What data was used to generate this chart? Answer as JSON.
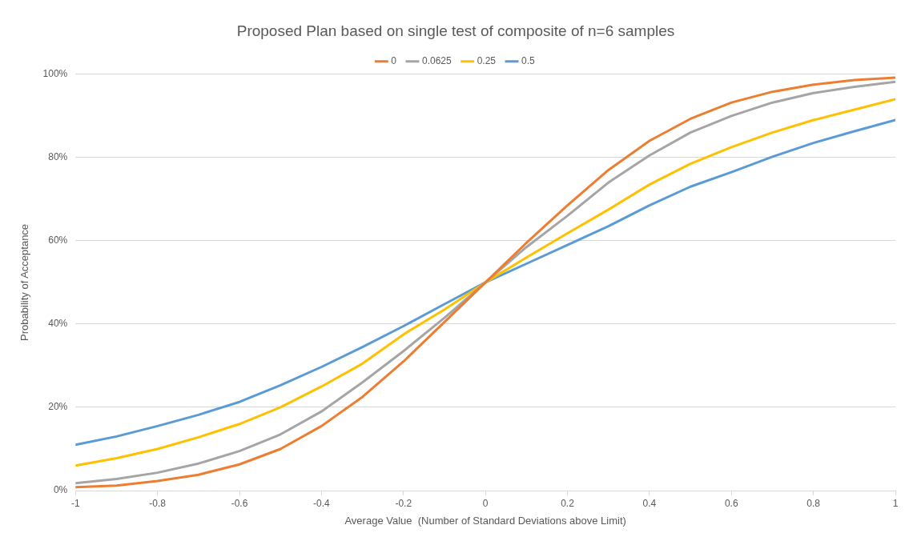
{
  "chart_data": {
    "type": "line",
    "title": "Proposed Plan based on single test of composite of n=6 samples",
    "xlabel": "Average Value  (Number of Standard Deviations above Limit)",
    "ylabel": "Probability of Acceptance",
    "x": [
      -1,
      -0.9,
      -0.8,
      -0.7,
      -0.6,
      -0.5,
      -0.4,
      -0.3,
      -0.2,
      -0.1,
      0,
      0.1,
      0.2,
      0.3,
      0.4,
      0.5,
      0.6,
      0.7,
      0.8,
      0.9,
      1
    ],
    "series": [
      {
        "name": "0",
        "color": "#ed7d31",
        "values": [
          0.8,
          1.2,
          2.3,
          3.8,
          6.3,
          10,
          15.5,
          22.5,
          31,
          40.5,
          50,
          59.5,
          68.5,
          77,
          84,
          89.3,
          93.2,
          95.8,
          97.5,
          98.6,
          99.2
        ]
      },
      {
        "name": "0.0625",
        "color": "#a5a5a5",
        "values": [
          1.8,
          2.8,
          4.3,
          6.5,
          9.5,
          13.5,
          19,
          26,
          33.5,
          41.5,
          50,
          58.5,
          66,
          74,
          80.5,
          86,
          90,
          93.2,
          95.5,
          97,
          98.2
        ]
      },
      {
        "name": "0.25",
        "color": "#ffc000",
        "values": [
          6,
          7.8,
          10,
          12.8,
          16,
          20,
          25,
          30.5,
          37.5,
          43.5,
          50,
          56,
          61.8,
          67.5,
          73.5,
          78.5,
          82.5,
          86,
          89,
          91.5,
          94
        ]
      },
      {
        "name": "0.5",
        "color": "#5b9bd5",
        "values": [
          11,
          13,
          15.5,
          18.2,
          21.3,
          25.3,
          29.7,
          34.5,
          39.5,
          44.8,
          50,
          54.5,
          59,
          63.5,
          68.5,
          73,
          76.5,
          80.2,
          83.5,
          86.3,
          89
        ]
      }
    ],
    "xlim": [
      -1,
      1
    ],
    "xticks": [
      -1,
      -0.8,
      -0.6,
      -0.4,
      -0.2,
      0,
      0.2,
      0.4,
      0.6,
      0.8,
      1
    ],
    "ylim": [
      0,
      100
    ],
    "yticks": [
      {
        "value": 0,
        "label": "0%"
      },
      {
        "value": 20,
        "label": "20%"
      },
      {
        "value": 40,
        "label": "40%"
      },
      {
        "value": 60,
        "label": "60%"
      },
      {
        "value": 80,
        "label": "80%"
      },
      {
        "value": 100,
        "label": "100%"
      }
    ],
    "grid": "y",
    "legend": "top",
    "marker": "none",
    "line_style": "solid"
  }
}
